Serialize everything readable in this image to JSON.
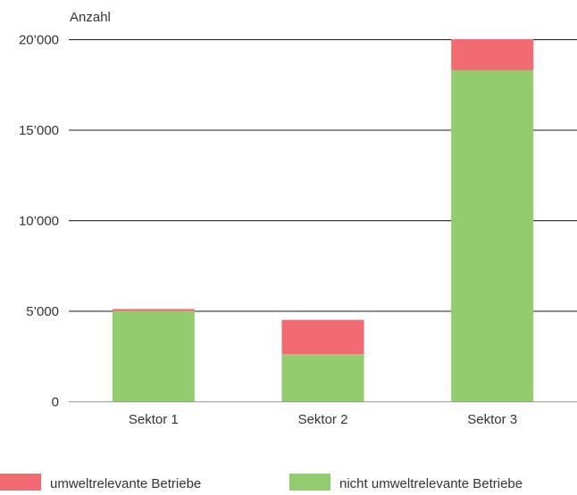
{
  "chart_data": {
    "type": "bar",
    "stacked": true,
    "ylabel": "Anzahl",
    "ylim": [
      0,
      20000
    ],
    "yticks": [
      0,
      5000,
      10000,
      15000,
      20000
    ],
    "ytick_labels": [
      "0",
      "5’000",
      "10’000",
      "15’000",
      "20’000"
    ],
    "categories": [
      "Sektor 1",
      "Sektor 2",
      "Sektor 3"
    ],
    "series": [
      {
        "name": "nicht umweltrelevante Betriebe",
        "color": "#92cc6e",
        "values": [
          5000,
          2600,
          18300
        ]
      },
      {
        "name": "umweltrelevante Betriebe",
        "color": "#f46a73",
        "values": [
          100,
          1900,
          1700
        ]
      }
    ],
    "legend": {
      "position": "bottom",
      "order": [
        "umweltrelevante Betriebe",
        "nicht umweltrelevante Betriebe"
      ]
    },
    "grid": "horizontal"
  }
}
